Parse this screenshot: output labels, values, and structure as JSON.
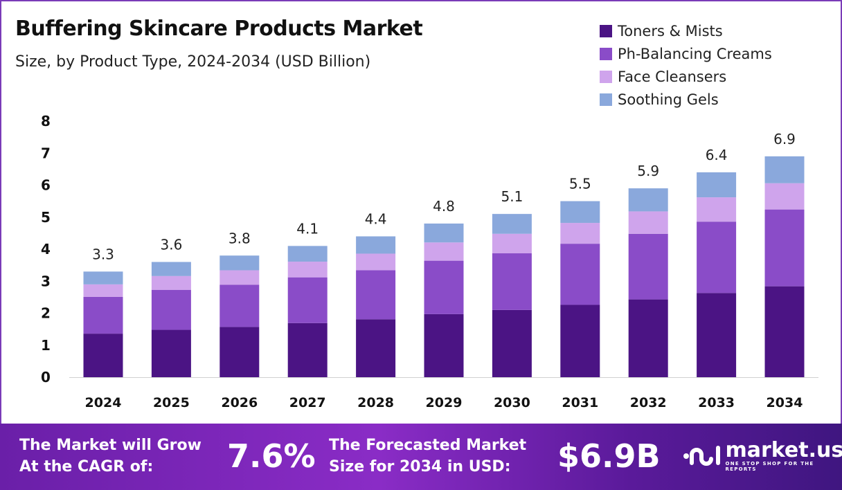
{
  "chart_data": {
    "type": "bar",
    "stacked": true,
    "title": "Buffering Skincare Products Market",
    "subtitle": "Size, by Product Type, 2024-2034 (USD Billion)",
    "categories": [
      "2024",
      "2025",
      "2026",
      "2027",
      "2028",
      "2029",
      "2030",
      "2031",
      "2032",
      "2033",
      "2034"
    ],
    "series": [
      {
        "name": "Toners & Mists",
        "color": "#4b1484",
        "values": [
          1.36,
          1.48,
          1.57,
          1.69,
          1.81,
          1.97,
          2.1,
          2.26,
          2.43,
          2.63,
          2.84
        ]
      },
      {
        "name": "Ph-Balancing Creams",
        "color": "#8a4cc8",
        "values": [
          1.15,
          1.25,
          1.32,
          1.43,
          1.53,
          1.67,
          1.77,
          1.91,
          2.05,
          2.23,
          2.4
        ]
      },
      {
        "name": "Face Cleansers",
        "color": "#cfa4ec",
        "values": [
          0.39,
          0.43,
          0.45,
          0.49,
          0.52,
          0.57,
          0.61,
          0.65,
          0.7,
          0.76,
          0.82
        ]
      },
      {
        "name": "Soothing Gels",
        "color": "#8aa8dc",
        "values": [
          0.4,
          0.44,
          0.46,
          0.49,
          0.54,
          0.59,
          0.62,
          0.68,
          0.72,
          0.78,
          0.84
        ]
      }
    ],
    "totals": [
      "3.3",
      "3.6",
      "3.8",
      "4.1",
      "4.4",
      "4.8",
      "5.1",
      "5.5",
      "5.9",
      "6.4",
      "6.9"
    ],
    "yticks": [
      "0",
      "1",
      "2",
      "3",
      "4",
      "5",
      "6",
      "7",
      "8"
    ],
    "ylim": [
      0,
      8
    ],
    "xlabel": "",
    "ylabel": "",
    "grid": false,
    "legend_position": "top-right"
  },
  "footer": {
    "cagr_label_1": "The Market will Grow",
    "cagr_label_2": "At the CAGR of:",
    "cagr_value": "7.6%",
    "forecast_label_1": "The Forecasted Market",
    "forecast_label_2": "Size for 2034 in USD:",
    "forecast_value": "$6.9B",
    "logo_text": "market.us",
    "logo_tagline": "ONE STOP SHOP FOR THE REPORTS"
  }
}
